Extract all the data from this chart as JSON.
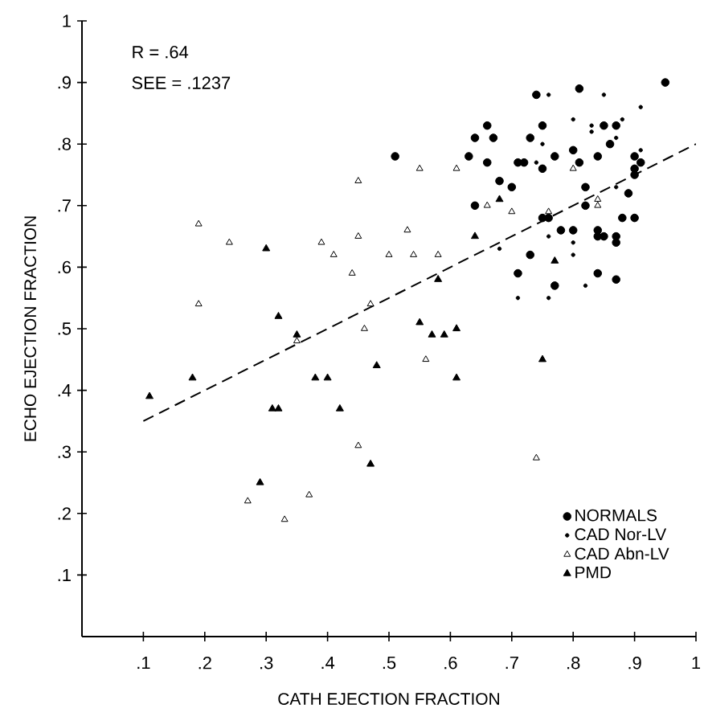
{
  "chart_data": {
    "type": "scatter",
    "xlabel": "CATH EJECTION FRACTION",
    "ylabel": "ECHO EJECTION FRACTION",
    "annotations": [
      "R = .64",
      "SEE = .1237"
    ],
    "xlim": [
      0,
      1
    ],
    "ylim": [
      0,
      1
    ],
    "xticks": [
      {
        "value": 0.1,
        "label": ".1"
      },
      {
        "value": 0.2,
        "label": ".2"
      },
      {
        "value": 0.3,
        "label": ".3"
      },
      {
        "value": 0.4,
        "label": ".4"
      },
      {
        "value": 0.5,
        "label": ".5"
      },
      {
        "value": 0.6,
        "label": ".6"
      },
      {
        "value": 0.7,
        "label": ".7"
      },
      {
        "value": 0.8,
        "label": ".8"
      },
      {
        "value": 0.9,
        "label": ".9"
      },
      1
    ],
    "yticks": [
      {
        "value": 0.1,
        "label": ".1"
      },
      {
        "value": 0.2,
        "label": ".2"
      },
      {
        "value": 0.3,
        "label": ".3"
      },
      {
        "value": 0.4,
        "label": ".4"
      },
      {
        "value": 0.5,
        "label": ".5"
      },
      {
        "value": 0.6,
        "label": ".6"
      },
      {
        "value": 0.7,
        "label": ".7"
      },
      {
        "value": 0.8,
        "label": ".8"
      },
      {
        "value": 0.9,
        "label": ".9"
      },
      1
    ],
    "grid": false,
    "legend": "bottom right",
    "series": [
      {
        "name": "NORMALS",
        "color": "#000000",
        "marker": "circle",
        "x": [
          0.95,
          0.81,
          0.74,
          0.66,
          0.67,
          0.75,
          0.85,
          0.87,
          0.64,
          0.73,
          0.86,
          0.51,
          0.63,
          0.66,
          0.71,
          0.72,
          0.75,
          0.77,
          0.8,
          0.81,
          0.84,
          0.9,
          0.91,
          0.9,
          0.9,
          0.68,
          0.7,
          0.82,
          0.89,
          0.64,
          0.75,
          0.76,
          0.82,
          0.88,
          0.9,
          0.78,
          0.8,
          0.84,
          0.85,
          0.84,
          0.87,
          0.87,
          0.73,
          0.71,
          0.77,
          0.84,
          0.87
        ],
        "values": [
          0.9,
          0.89,
          0.88,
          0.83,
          0.81,
          0.83,
          0.83,
          0.83,
          0.81,
          0.81,
          0.8,
          0.78,
          0.78,
          0.77,
          0.77,
          0.77,
          0.76,
          0.78,
          0.79,
          0.77,
          0.78,
          0.78,
          0.77,
          0.76,
          0.75,
          0.74,
          0.73,
          0.73,
          0.72,
          0.7,
          0.68,
          0.68,
          0.7,
          0.68,
          0.68,
          0.66,
          0.66,
          0.66,
          0.65,
          0.65,
          0.65,
          0.64,
          0.62,
          0.59,
          0.57,
          0.59,
          0.58
        ]
      },
      {
        "name": "CAD Nor-LV",
        "color": "#000000",
        "marker": "circle",
        "x": [
          0.76,
          0.85,
          0.91,
          0.8,
          0.83,
          0.83,
          0.88,
          0.75,
          0.87,
          0.91,
          0.74,
          0.87,
          0.76,
          0.8,
          0.8,
          0.68,
          0.82,
          0.71,
          0.76
        ],
        "values": [
          0.88,
          0.88,
          0.86,
          0.84,
          0.83,
          0.82,
          0.84,
          0.8,
          0.81,
          0.79,
          0.77,
          0.73,
          0.65,
          0.64,
          0.62,
          0.63,
          0.57,
          0.55,
          0.55
        ]
      },
      {
        "name": "CAD Abn-LV",
        "color": "#000000",
        "marker": "triangle",
        "x": [
          0.19,
          0.24,
          0.39,
          0.41,
          0.19,
          0.35,
          0.55,
          0.61,
          0.8,
          0.45,
          0.66,
          0.7,
          0.76,
          0.84,
          0.84,
          0.45,
          0.53,
          0.5,
          0.54,
          0.58,
          0.44,
          0.47,
          0.46,
          0.56,
          0.45,
          0.74,
          0.27,
          0.33,
          0.37
        ],
        "values": [
          0.67,
          0.64,
          0.64,
          0.62,
          0.54,
          0.48,
          0.76,
          0.76,
          0.76,
          0.74,
          0.7,
          0.69,
          0.69,
          0.71,
          0.7,
          0.65,
          0.66,
          0.62,
          0.62,
          0.62,
          0.59,
          0.54,
          0.5,
          0.45,
          0.31,
          0.29,
          0.22,
          0.19,
          0.23
        ]
      },
      {
        "name": "PMD",
        "color": "#000000",
        "marker": "triangle",
        "x": [
          0.3,
          0.32,
          0.35,
          0.68,
          0.64,
          0.77,
          0.58,
          0.55,
          0.57,
          0.59,
          0.61,
          0.48,
          0.75,
          0.61,
          0.42,
          0.47,
          0.11,
          0.18,
          0.31,
          0.32,
          0.38,
          0.4,
          0.29
        ],
        "values": [
          0.63,
          0.52,
          0.49,
          0.71,
          0.65,
          0.61,
          0.58,
          0.51,
          0.49,
          0.49,
          0.5,
          0.44,
          0.45,
          0.42,
          0.37,
          0.28,
          0.39,
          0.42,
          0.37,
          0.37,
          0.42,
          0.42,
          0.25
        ]
      },
      {
        "type": "line",
        "color": "#000000",
        "marker": "none",
        "line_style": "dashed",
        "x": [
          0.1,
          1
        ],
        "values": [
          0.35,
          0.8
        ]
      }
    ]
  }
}
